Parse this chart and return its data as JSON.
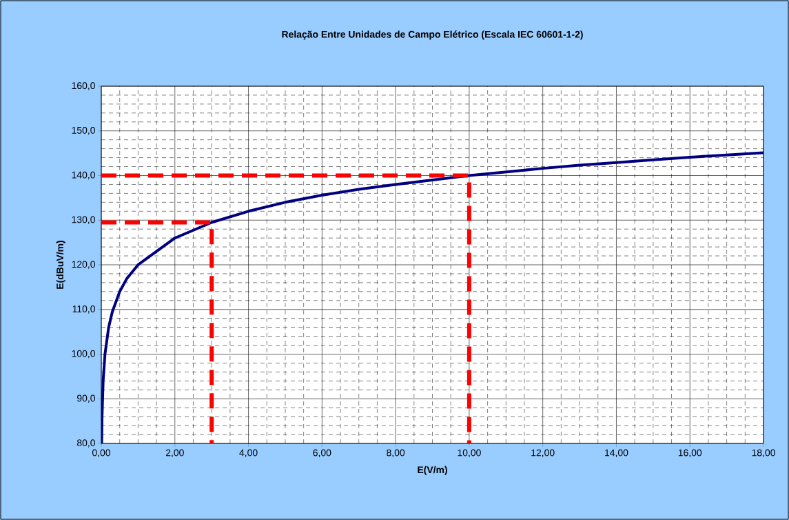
{
  "chart_data": {
    "type": "line",
    "title": "Relação Entre Unidades de Campo Elétrico (Escala IEC 60601-1-2)",
    "xlabel": "E(V/m)",
    "ylabel": "E(dBuV/m)",
    "xlim": [
      0,
      18
    ],
    "ylim": [
      80,
      160
    ],
    "xticks": [
      {
        "value": 0,
        "label": "0,00"
      },
      {
        "value": 2,
        "label": "2,00"
      },
      {
        "value": 4,
        "label": "4,00"
      },
      {
        "value": 6,
        "label": "6,00"
      },
      {
        "value": 8,
        "label": "8,00"
      },
      {
        "value": 10,
        "label": "10,00"
      },
      {
        "value": 12,
        "label": "12,00"
      },
      {
        "value": 14,
        "label": "14,00"
      },
      {
        "value": 16,
        "label": "16,00"
      },
      {
        "value": 18,
        "label": "18,00"
      }
    ],
    "yticks": [
      {
        "value": 80,
        "label": "80,0"
      },
      {
        "value": 90,
        "label": "90,0"
      },
      {
        "value": 100,
        "label": "100,0"
      },
      {
        "value": 110,
        "label": "110,0"
      },
      {
        "value": 120,
        "label": "120,0"
      },
      {
        "value": 130,
        "label": "130,0"
      },
      {
        "value": 140,
        "label": "140,0"
      },
      {
        "value": 150,
        "label": "150,0"
      },
      {
        "value": 160,
        "label": "160,0"
      }
    ],
    "grid": true,
    "marker": "none",
    "series": [
      {
        "color": "#000080",
        "line_style": "solid",
        "x": [
          0.01,
          0.02,
          0.05,
          0.1,
          0.2,
          0.3,
          0.5,
          0.7,
          0.9,
          1,
          2,
          3,
          4,
          5,
          6,
          7,
          8,
          9,
          10,
          11,
          12,
          13,
          14,
          15,
          16,
          17,
          18
        ],
        "values": [
          80,
          86,
          94,
          100,
          106,
          109.5,
          114,
          117,
          119,
          120,
          126,
          129.5,
          132,
          134,
          135.6,
          136.9,
          138,
          139,
          140,
          140.8,
          141.6,
          142.3,
          142.9,
          143.5,
          144.1,
          144.6,
          145.1
        ]
      },
      {
        "color": "#ff0000",
        "line_style": "dashed",
        "x": [
          0,
          3,
          3
        ],
        "values": [
          129.5,
          129.5,
          80
        ]
      },
      {
        "color": "#ff0000",
        "line_style": "dashed",
        "x": [
          0,
          10,
          10
        ],
        "values": [
          140,
          140,
          80
        ]
      }
    ]
  }
}
